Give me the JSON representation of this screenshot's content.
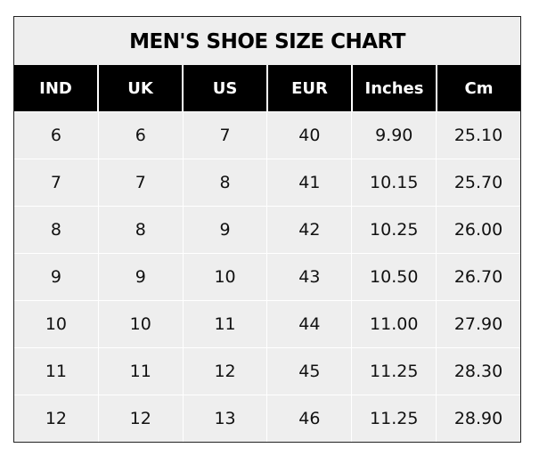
{
  "chart_data": {
    "type": "table",
    "title": "MEN'S SHOE SIZE CHART",
    "columns": [
      "IND",
      "UK",
      "US",
      "EUR",
      "Inches",
      "Cm"
    ],
    "rows": [
      [
        "6",
        "6",
        "7",
        "40",
        "9.90",
        "25.10"
      ],
      [
        "7",
        "7",
        "8",
        "41",
        "10.15",
        "25.70"
      ],
      [
        "8",
        "8",
        "9",
        "42",
        "10.25",
        "26.00"
      ],
      [
        "9",
        "9",
        "10",
        "43",
        "10.50",
        "26.70"
      ],
      [
        "10",
        "10",
        "11",
        "44",
        "11.00",
        "27.90"
      ],
      [
        "11",
        "11",
        "12",
        "45",
        "11.25",
        "28.30"
      ],
      [
        "12",
        "12",
        "13",
        "46",
        "11.25",
        "28.90"
      ]
    ],
    "colors": {
      "header_bg": "#000000",
      "header_text": "#ffffff",
      "body_bg": "#eeeeee"
    }
  }
}
